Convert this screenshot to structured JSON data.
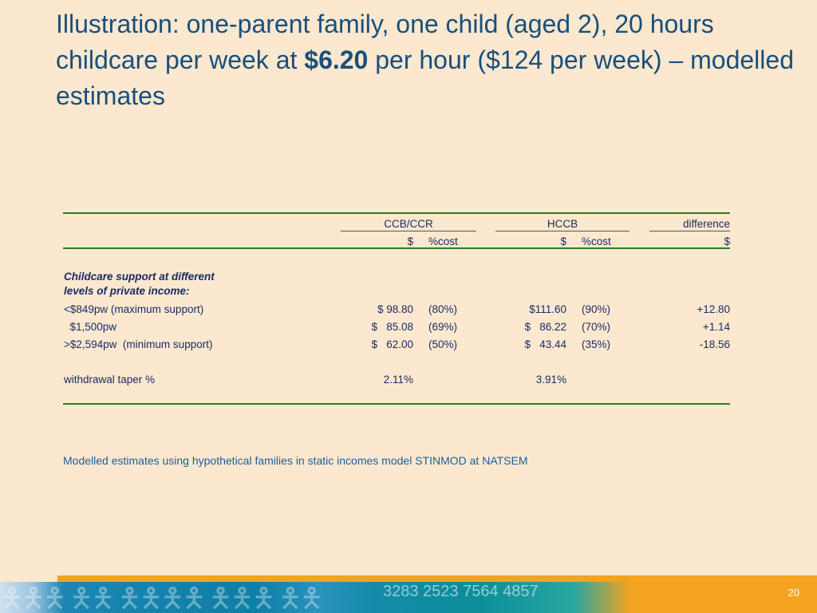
{
  "slide": {
    "title_part1": "Illustration: one-parent family, one child (aged 2), 20 hours childcare per week at ",
    "title_bold": "$6.20",
    "title_part2": " per hour ($124 per week) – modelled estimates",
    "page_number": "20"
  },
  "table": {
    "group_headers": {
      "ccb": "CCB/CCR",
      "hccb": "HCCB",
      "difference": "difference"
    },
    "sub_headers": {
      "ccb_dollar": "$",
      "ccb_pct": "%cost",
      "hccb_dollar": "$",
      "hccb_pct": "%cost",
      "diff_dollar": "$"
    },
    "section_label_line1": "Childcare support at different",
    "section_label_line2": "levels of private income:",
    "rows": [
      {
        "label": "<$849pw (maximum support)",
        "ccb_dollar": "$ 98.80",
        "ccb_pct": "(80%)",
        "hccb_dollar": "$111.60",
        "hccb_pct": "(90%)",
        "difference": "+12.80"
      },
      {
        "label": "  $1,500pw",
        "ccb_dollar": "$   85.08",
        "ccb_pct": "(69%)",
        "hccb_dollar": "$   86.22",
        "hccb_pct": "(70%)",
        "difference": "+1.14"
      },
      {
        "label": ">$2,594pw  (minimum support)",
        "ccb_dollar": "$   62.00",
        "ccb_pct": "(50%)",
        "hccb_dollar": "$   43.44",
        "hccb_pct": "(35%)",
        "difference": "-18.56"
      }
    ],
    "taper": {
      "label": "withdrawal taper %",
      "ccb": "2.11%",
      "hccb": "3.91%"
    }
  },
  "note": "Modelled estimates using hypothetical families in static incomes model STINMOD at NATSEM",
  "footer": {
    "decor_numbers": "3283 2523 7564 4857"
  },
  "colors": {
    "background": "#fbe8cf",
    "title": "#184f7d",
    "table_text": "#1a2b66",
    "rule": "#2e7d1e",
    "note": "#1d5e9a",
    "footer_orange": "#f3a320",
    "footer_teal": "#0e7fa6"
  }
}
